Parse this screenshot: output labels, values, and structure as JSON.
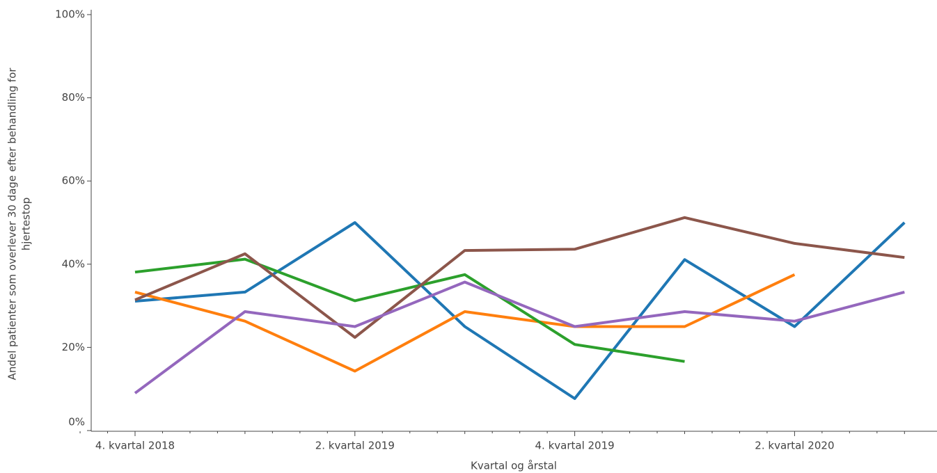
{
  "chart_data": {
    "type": "line",
    "xlabel": "Kvartal og årstal",
    "ylabel": [
      "Andel patienter som overlever 30 dage efter behandling for",
      "hjertestop"
    ],
    "categories": [
      "4. kvartal 2018",
      null,
      "2. kvartal 2019",
      null,
      "4. kvartal 2019",
      null,
      "2. kvartal 2020",
      null
    ],
    "ylim": [
      0,
      100
    ],
    "yticks": [
      {
        "value": 0,
        "label": "0%"
      },
      {
        "value": 20,
        "label": "20%"
      },
      {
        "value": 40,
        "label": "40%"
      },
      {
        "value": 60,
        "label": "60%"
      },
      {
        "value": 80,
        "label": "80%"
      },
      {
        "value": 100,
        "label": "100%"
      }
    ],
    "series": [
      {
        "color": "#1f77b4",
        "values": [
          31.1,
          33.3,
          50,
          25,
          7.7,
          41.1,
          25,
          50
        ]
      },
      {
        "color": "#ff7f0e",
        "values": [
          33.3,
          26.3,
          14.3,
          28.6,
          25,
          25,
          37.5,
          null
        ]
      },
      {
        "color": "#2ca02c",
        "values": [
          38.1,
          41.2,
          31.2,
          37.5,
          20.7,
          16.6,
          null,
          null
        ]
      },
      {
        "color": "#8c564b",
        "values": [
          31.4,
          42.5,
          22.4,
          43.3,
          43.6,
          51.2,
          45,
          41.6
        ]
      },
      {
        "color": "#9467bd",
        "values": [
          9,
          28.6,
          25,
          35.7,
          25,
          28.6,
          26.3,
          33.3
        ]
      }
    ]
  }
}
